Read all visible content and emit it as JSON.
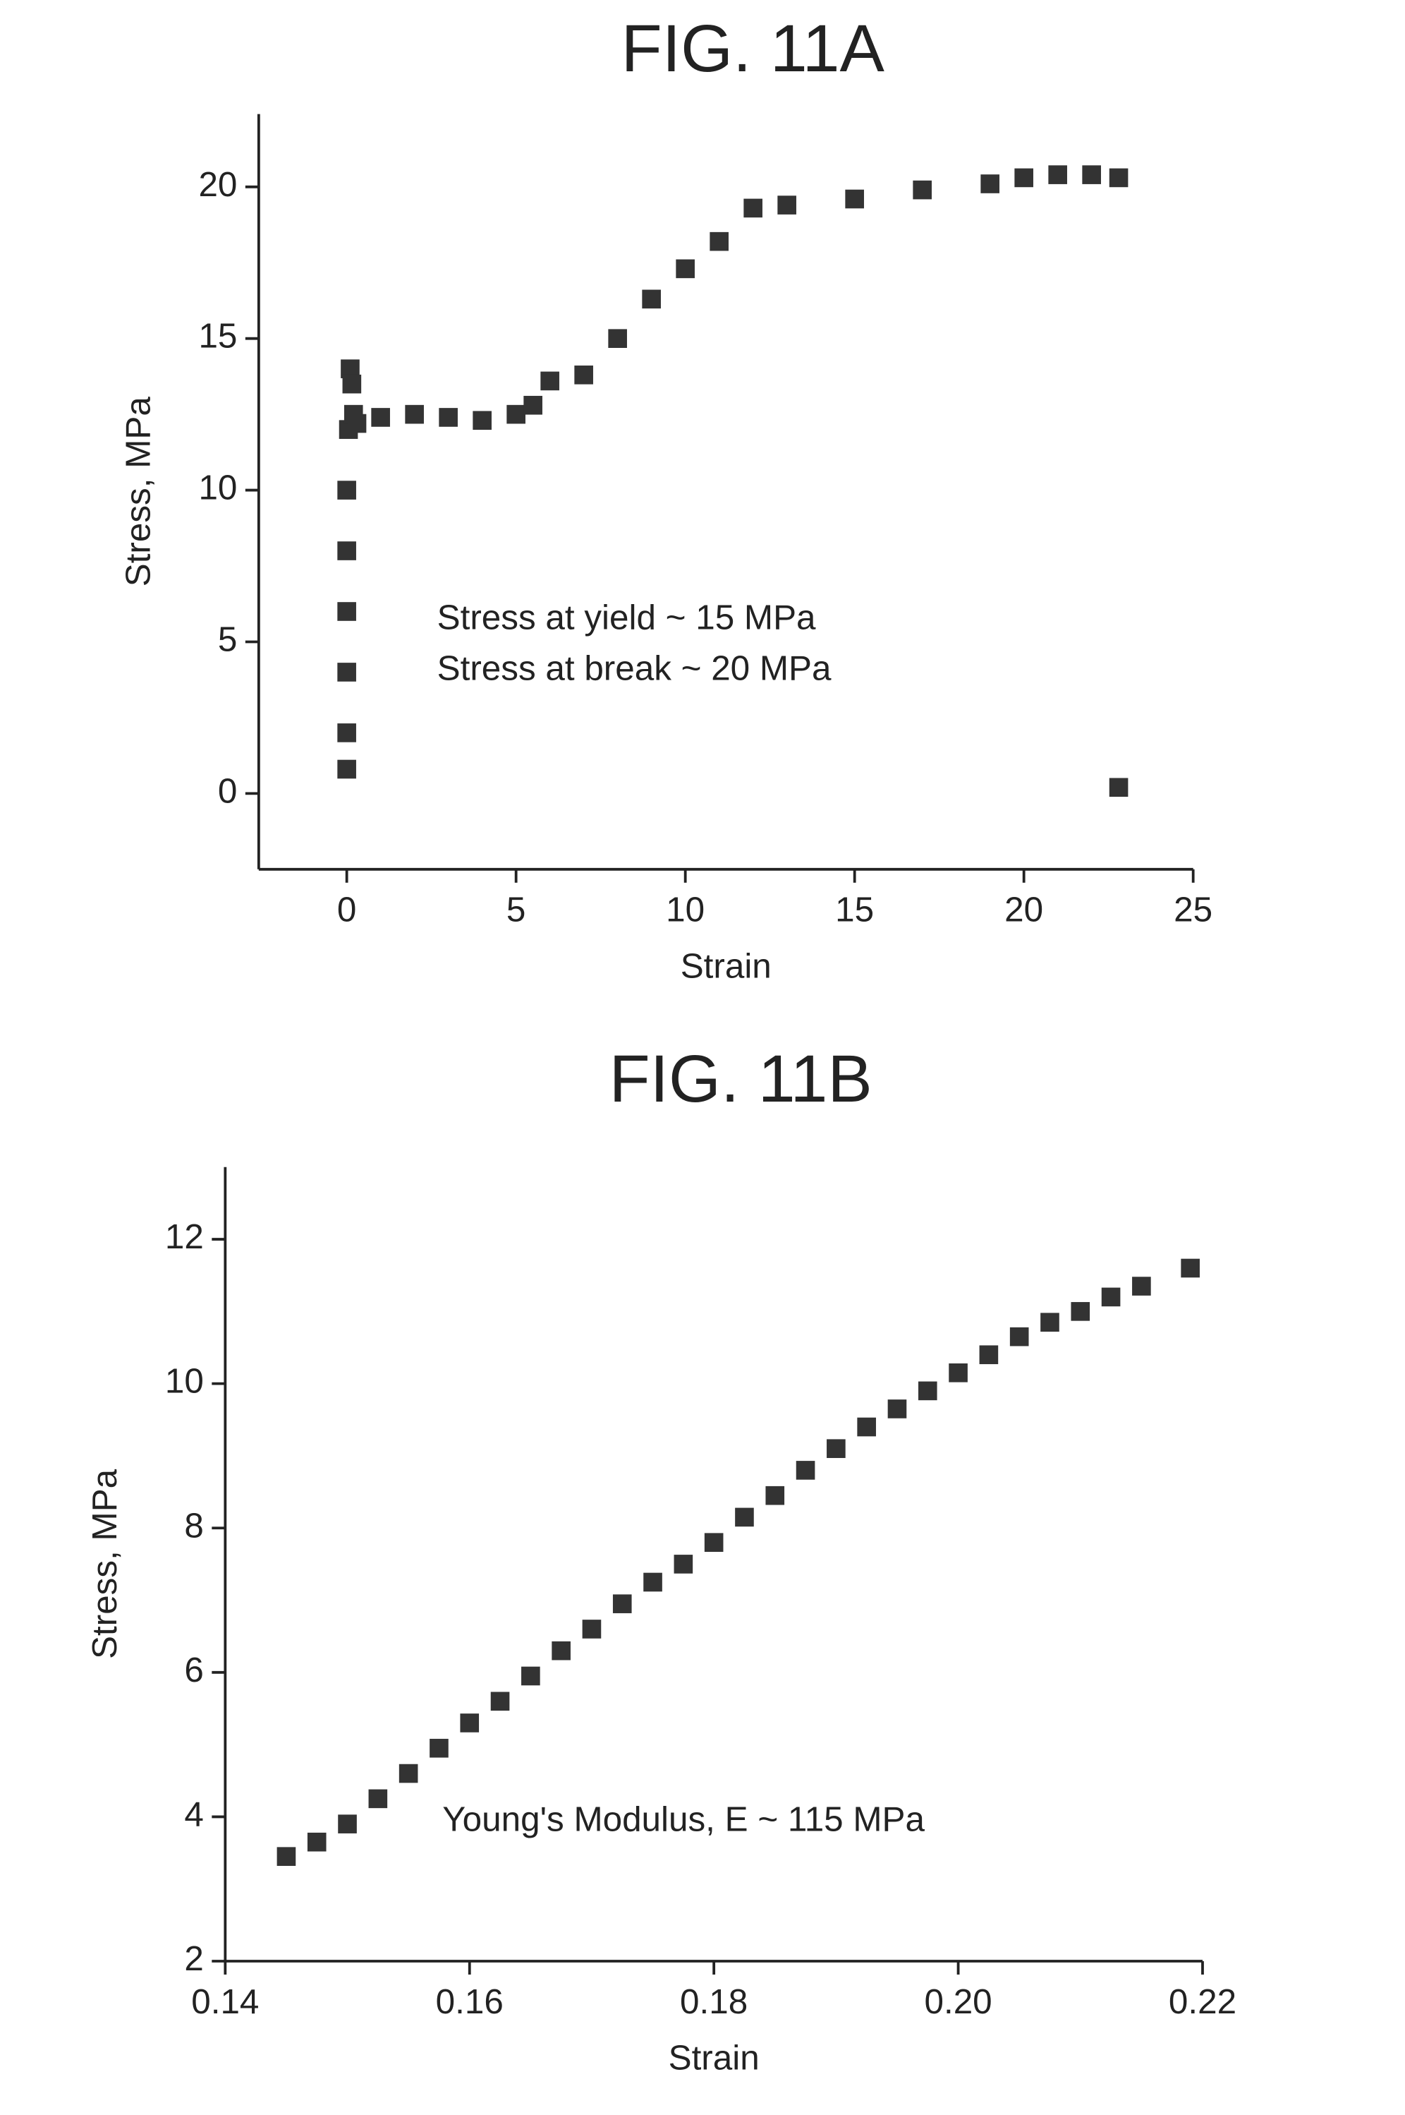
{
  "chart_data": [
    {
      "type": "scatter",
      "title": "FIG. 11A",
      "x_label": "Strain",
      "y_label": "Stress, MPa",
      "annotations": [
        "Stress at yield ~ 15 MPa",
        "Stress at break ~ 20 MPa"
      ],
      "x": [
        0,
        0,
        0,
        0,
        0,
        0,
        0.05,
        0.1,
        0.15,
        0.2,
        0.3,
        1,
        2,
        3,
        4,
        5,
        5.5,
        6,
        7,
        8,
        9,
        10,
        11,
        12,
        13,
        15,
        17,
        19,
        20,
        21,
        22,
        22.8,
        22.8
      ],
      "values": [
        0.8,
        2,
        4,
        6,
        8,
        10,
        12,
        14,
        13.5,
        12.5,
        12.2,
        12.4,
        12.5,
        12.4,
        12.3,
        12.5,
        12.8,
        13.6,
        13.8,
        15,
        16.3,
        17.3,
        18.2,
        19.3,
        19.4,
        19.6,
        19.9,
        20.1,
        20.3,
        20.4,
        20.4,
        20.3,
        0.2
      ],
      "color": "#333333",
      "xlim": [
        -2.6,
        25
      ],
      "xticks": [
        0,
        5,
        10,
        15,
        20,
        25
      ],
      "ylim": [
        -2.5,
        22.4
      ],
      "yticks": [
        0,
        5,
        10,
        15,
        20
      ]
    },
    {
      "type": "scatter",
      "title": "FIG. 11B",
      "x_label": "Strain",
      "y_label": "Stress, MPa",
      "annotations": [
        "Young's Modulus, E ~ 115 MPa"
      ],
      "x": [
        0.145,
        0.1475,
        0.15,
        0.1525,
        0.155,
        0.1575,
        0.16,
        0.1625,
        0.165,
        0.1675,
        0.17,
        0.1725,
        0.175,
        0.1775,
        0.18,
        0.1825,
        0.185,
        0.1875,
        0.19,
        0.1925,
        0.195,
        0.1975,
        0.2,
        0.2025,
        0.205,
        0.2075,
        0.21,
        0.2125,
        0.215,
        0.219
      ],
      "values": [
        3.45,
        3.65,
        3.9,
        4.25,
        4.6,
        4.95,
        5.3,
        5.6,
        5.95,
        6.3,
        6.6,
        6.95,
        7.25,
        7.5,
        7.8,
        8.15,
        8.45,
        8.8,
        9.1,
        9.4,
        9.65,
        9.9,
        10.15,
        10.4,
        10.65,
        10.85,
        11.0,
        11.2,
        11.35,
        11.6
      ],
      "color": "#333333",
      "xlim": [
        0.14,
        0.22
      ],
      "xticks": [
        0.14,
        0.16,
        0.18,
        {
          "value": 0.2,
          "label": "0.20"
        },
        0.22
      ],
      "ylim": [
        2,
        13
      ],
      "yticks": [
        2,
        4,
        6,
        8,
        10,
        12
      ]
    }
  ]
}
